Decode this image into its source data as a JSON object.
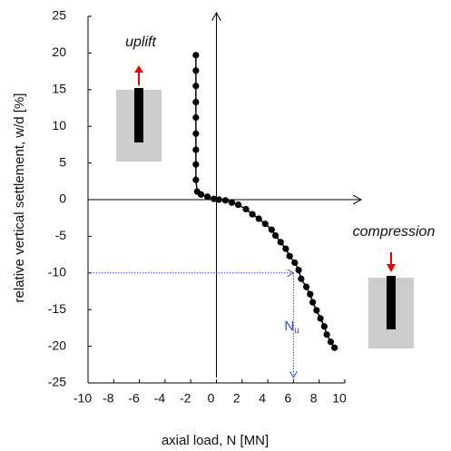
{
  "chart_data": {
    "type": "line",
    "x_label": "axial load, N [MN]",
    "y_label": "relative vertical settlement, w/d [%]",
    "annotations": {
      "uplift": "uplift",
      "compression": "compression",
      "n": "N",
      "n_sub": "u"
    },
    "reference_point": {
      "x": 6,
      "y": -10
    },
    "xlim": [
      -10,
      10
    ],
    "xticks": [
      -10,
      -8,
      -6,
      -4,
      -2,
      0,
      2,
      4,
      6,
      8,
      10
    ],
    "ylim": [
      -25,
      25
    ],
    "yticks": [
      -25,
      -20,
      -15,
      -10,
      -5,
      0,
      5,
      10,
      15,
      20,
      25
    ],
    "series": [
      {
        "color": "#000000",
        "x": [
          -1.6,
          -1.6,
          -1.6,
          -1.6,
          -1.6,
          -1.6,
          -1.6,
          -1.6,
          -1.6,
          -1.5,
          -1.2,
          -0.7,
          -0.2,
          0.2,
          0.7,
          1.2,
          1.7,
          2.3,
          2.8,
          3.3,
          3.8,
          4.3,
          4.6,
          5.0,
          5.4,
          5.7,
          6.1,
          6.4,
          6.6,
          7.0,
          7.3,
          7.5,
          7.8,
          8.1,
          8.4,
          8.6,
          8.9,
          9.2
        ],
        "values": [
          19.7,
          17.6,
          15.5,
          13.3,
          11.2,
          9.0,
          6.8,
          4.8,
          2.7,
          1.1,
          0.7,
          0.4,
          0.1,
          0,
          -0.1,
          -0.4,
          -0.7,
          -1.3,
          -2.0,
          -2.6,
          -3.3,
          -4.1,
          -4.9,
          -5.8,
          -6.7,
          -7.7,
          -8.6,
          -9.6,
          -10.8,
          -11.9,
          -12.9,
          -14.0,
          -15.1,
          -16.2,
          -17.3,
          -18.4,
          -19.4,
          -20.2
        ]
      }
    ]
  }
}
